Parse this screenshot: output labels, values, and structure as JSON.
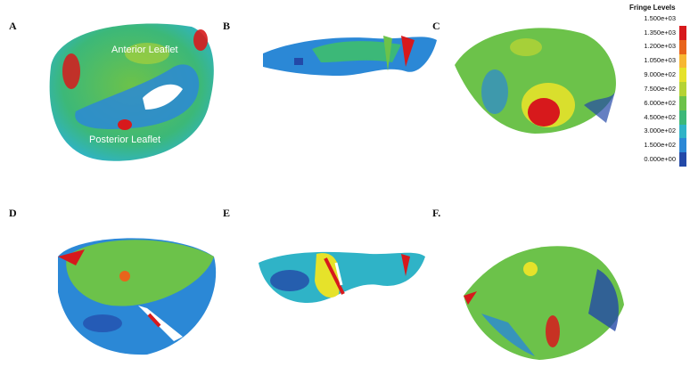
{
  "panels": [
    {
      "id": "A",
      "letter": "A",
      "labels": [
        "Anterior Leaflet",
        "Posterior Leaflet"
      ]
    },
    {
      "id": "B",
      "letter": "B"
    },
    {
      "id": "C",
      "letter": "C"
    },
    {
      "id": "D",
      "letter": "D"
    },
    {
      "id": "E",
      "letter": "E"
    },
    {
      "id": "F",
      "letter": "F."
    }
  ],
  "legend": {
    "title": "Fringe Levels",
    "ticks": [
      "1.500e+03",
      "1.350e+03",
      "1.200e+03",
      "1.050e+03",
      "9.000e+02",
      "7.500e+02",
      "6.000e+02",
      "4.500e+02",
      "3.000e+02",
      "1.500e+02",
      "0.000e+00"
    ],
    "colors": [
      "#d7191c",
      "#e8641b",
      "#f7b733",
      "#e6e22a",
      "#b5d334",
      "#6cc24a",
      "#3cb878",
      "#2fb3c7",
      "#2b88d6",
      "#2349a8"
    ]
  }
}
